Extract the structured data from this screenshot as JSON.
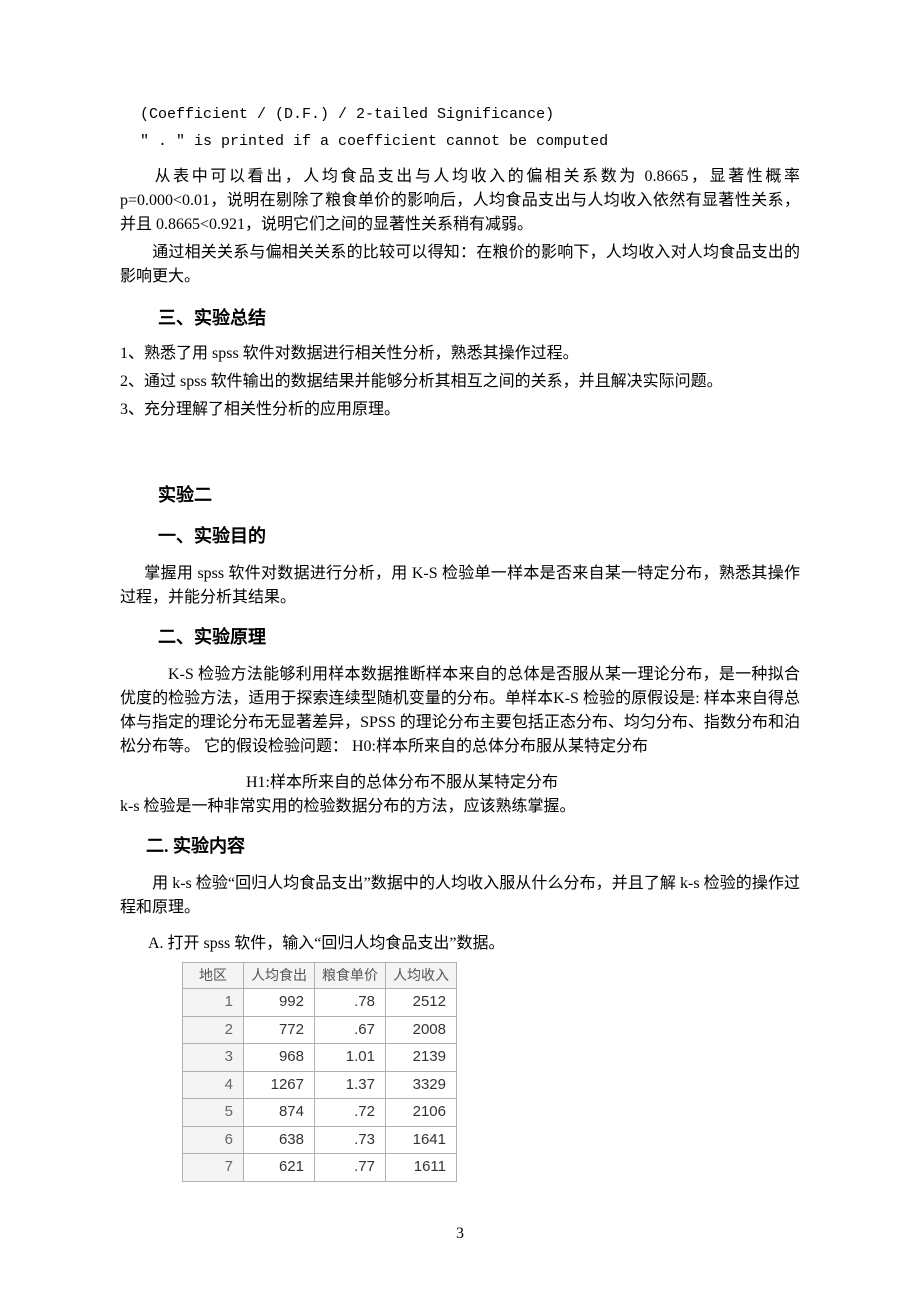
{
  "monoLine1": "(Coefficient / (D.F.) / 2-tailed Significance)",
  "monoLine2": "\" . \" is printed if a coefficient cannot be computed",
  "para1": "从表中可以看出，人均食品支出与人均收入的偏相关系数为 0.8665，显著性概率 p=0.000<0.01，说明在剔除了粮食单价的影响后，人均食品支出与人均收入依然有显著性关系，并且 0.8665<0.921，说明它们之间的显著性关系稍有减弱。",
  "para2": "通过相关关系与偏相关关系的比较可以得知：在粮价的影响下，人均收入对人均食品支出的影响更大。",
  "heading_summary": "三、实验总结",
  "summary_items": [
    "1、熟悉了用 spss 软件对数据进行相关性分析，熟悉其操作过程。",
    "2、通过 spss 软件输出的数据结果并能够分析其相互之间的关系，并且解决实际问题。",
    "3、充分理解了相关性分析的应用原理。"
  ],
  "heading_exp2": "实验二",
  "heading_purpose": "一、实验目的",
  "purpose_para": "掌握用 spss 软件对数据进行分析，用 K-S 检验单一样本是否来自某一特定分布，熟悉其操作过程，并能分析其结果。",
  "heading_principle": "二、实验原理",
  "principle_para": "K-S 检验方法能够利用样本数据推断样本来自的总体是否服从某一理论分布，是一种拟合优度的检验方法，适用于探索连续型随机变量的分布。单样本K-S 检验的原假设是: 样本来自得总体与指定的理论分布无显著差异，SPSS 的理论分布主要包括正态分布、均匀分布、指数分布和泊松分布等。 它的假设检验问题：  H0:样本所来自的总体分布服从某特定分布",
  "h1_line": "H1:样本所来自的总体分布不服从某特定分布",
  "ks_line": "k-s 检验是一种非常实用的检验数据分布的方法，应该熟练掌握。",
  "heading_content": "二. 实验内容",
  "content_para": "用 k-s 检验“回归人均食品支出”数据中的人均收入服从什么分布，并且了解 k-s 检验的操作过程和原理。",
  "step_a": "A. 打开 spss 软件，输入“回归人均食品支出”数据。",
  "table": {
    "columns": [
      "地区",
      "人均食出",
      "粮食单价",
      "人均收入"
    ],
    "rows": [
      [
        "1",
        "992",
        ".78",
        "2512"
      ],
      [
        "2",
        "772",
        ".67",
        "2008"
      ],
      [
        "3",
        "968",
        "1.01",
        "2139"
      ],
      [
        "4",
        "1267",
        "1.37",
        "3329"
      ],
      [
        "5",
        "874",
        ".72",
        "2106"
      ],
      [
        "6",
        "638",
        ".73",
        "1641"
      ],
      [
        "7",
        "621",
        ".77",
        "1611"
      ]
    ],
    "header_bg": "#f4f4f4",
    "border_color": "#b0b0b0",
    "text_color": "#333333"
  },
  "page_number": "3"
}
